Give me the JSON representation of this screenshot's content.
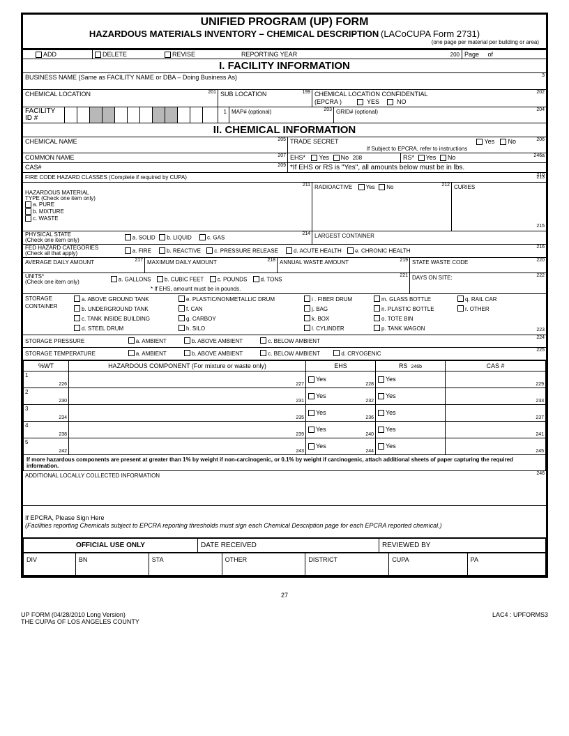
{
  "header": {
    "title": "UNIFIED PROGRAM (UP) FORM",
    "subtitle": "HAZARDOUS MATERIALS INVENTORY – CHEMICAL DESCRIPTION",
    "formref": "(LACoCUPA Form 2731)",
    "note": "(one page per material per building or area)"
  },
  "topbar": {
    "add": "ADD",
    "delete": "DELETE",
    "revise": "REVISE",
    "reporting_year": "REPORTING YEAR",
    "page": "Page",
    "of": "of",
    "n200": "200"
  },
  "sec1": {
    "title": "I.       FACILITY INFORMATION",
    "business": "BUSINESS NAME (Same as FACILITY NAME or DBA – Doing Business As)",
    "n3": "3",
    "chem_loc": "CHEMICAL LOCATION",
    "n201": "201",
    "sub_loc": "SUB LOCATION",
    "n199": "199",
    "conf": "CHEMICAL LOCATION CONFIDENTIAL",
    "epcra": "(EPCRA )",
    "yes": "YES",
    "no": "NO",
    "n202": "202",
    "facility_id": "FACILITY\nID #",
    "n1": "1",
    "map": "MAP# (optional)",
    "n203": "203",
    "grid": "GRID# (optional)",
    "n204": "204"
  },
  "sec2": {
    "title": "II.  CHEMICAL INFORMATION",
    "chem_name": "CHEMICAL NAME",
    "n205": "205",
    "trade_secret": "TRADE SECRET",
    "yes": "Yes",
    "no": "No",
    "n206": "206",
    "epcra_note": "If Subject to EPCRA, refer to instructions",
    "common": "COMMON NAME",
    "n207": "207",
    "ehs": "EHS*",
    "n208": "208",
    "rs": "RS*",
    "n246a": "246a",
    "cas": "CAS#",
    "n209": "209",
    "ehs_note": "*If EHS or RS is \"Yes\", all amounts below must be in lbs.",
    "fire_code": "FIRE CODE HAZARD CLASSES (Complete if required by CUPA)",
    "n210": "210",
    "haz_type": "HAZARDOUS MATERIAL\nTYPE (Check one item only)",
    "pure": "a. PURE",
    "mixture": "b. MIXTURE",
    "waste": "c. WASTE",
    "n211": "211",
    "radio": "RADIOACTIVE",
    "n212": "212",
    "curies": "CURIES",
    "n213": "213",
    "phys": "PHYSICAL STATE\n(Check one item only)",
    "solid": "a. SOLID",
    "liquid": "b. LIQUID",
    "gas": "c. GAS",
    "n214": "214",
    "largest": "LARGEST CONTAINER",
    "n215": "215",
    "fed": "FED HAZARD CATEGORIES\n(Check all that apply)",
    "fire": "a.  FIRE",
    "reactive": "b.  REACTIVE",
    "pressure": "c. PRESSURE RELEASE",
    "acute": "d.  ACUTE HEALTH",
    "chronic": "e.  CHRONIC HEALTH",
    "n216": "216",
    "avg": "AVERAGE DAILY AMOUNT",
    "n217": "217",
    "max": "MAXIMUM DAILY AMOUNT",
    "n218": "218",
    "annual": "ANNUAL WASTE AMOUNT",
    "n219": "219",
    "state_code": "STATE WASTE CODE",
    "n220": "220",
    "units": "UNITS*\n(Check one item only)",
    "gallons": "a. GALLONS",
    "cubic": "b.  CUBIC FEET",
    "pounds": "c. POUNDS",
    "tons": "d. TONS",
    "units_note": "* If EHS, amount must be in pounds.",
    "n221": "221",
    "days": "DAYS ON SITE:",
    "n222": "222",
    "storage": "STORAGE\nCONTAINER",
    "sc_a": "a. ABOVE  GROUND TANK",
    "sc_b": "b. UNDERGROUND TANK",
    "sc_c": "c. TANK INSIDE BUILDING",
    "sc_d": "d.  STEEL DRUM",
    "sc_e": "e. PLASTIC/NONMETALLIC DRUM",
    "sc_f": "f.  CAN",
    "sc_g": "g. CARBOY",
    "sc_h": "h. SILO",
    "sc_i": "i .  FIBER DRUM",
    "sc_j": "j.  BAG",
    "sc_k": "k.  BOX",
    "sc_l": "l.  CYLINDER",
    "sc_m": "m.  GLASS BOTTLE",
    "sc_n": "n.   PLASTIC BOTTLE",
    "sc_o": "o.  TOTE BIN",
    "sc_p": "p.  TANK WAGON",
    "sc_q": "q.  RAIL CAR",
    "sc_r": "r.   OTHER",
    "n223": "223",
    "press": "STORAGE  PRESSURE",
    "ambient": "a.  AMBIENT",
    "above_amb": "b.  ABOVE AMBIENT",
    "below_amb": "c.  BELOW AMBIENT",
    "n224": "224",
    "temp": "STORAGE TEMPERATURE",
    "cryo": "d.  CRYOGENIC",
    "n225": "225"
  },
  "comp": {
    "wt": "%WT",
    "component": "HAZARDOUS COMPONENT (For mixture or waste only)",
    "ehs": "EHS",
    "rs": "RS",
    "rs_n": "246b",
    "cas": "CAS #",
    "rows": [
      {
        "i": "1",
        "a": "226",
        "b": "227",
        "c": "228",
        "d": "229"
      },
      {
        "i": "2",
        "a": "230",
        "b": "231",
        "c": "232",
        "d": "233"
      },
      {
        "i": "3",
        "a": "234",
        "b": "235",
        "c": "236",
        "d": "237"
      },
      {
        "i": "4",
        "a": "238",
        "b": "239",
        "c": "240",
        "d": "241"
      },
      {
        "i": "5",
        "a": "242",
        "b": "243",
        "c": "244",
        "d": "245"
      }
    ],
    "yes": "Yes"
  },
  "notes": {
    "more": "If more hazardous components are present at greater than 1% by weight if non-carcinogenic, or 0.1% by weight if carcinogenic, attach additional sheets of paper capturing the required information.",
    "addl": "ADDITIONAL LOCALLY COLLECTED INFORMATION",
    "n246": "246",
    "sign": "If EPCRA, Please Sign Here",
    "sign_note": "(Facilities reporting Chemicals subject to EPCRA  reporting thresholds must sign each Chemical Description page for each  EPCRA reported chemical.)"
  },
  "official": {
    "title": "OFFICIAL USE ONLY",
    "date": "DATE RECEIVED",
    "reviewed": "REVIEWED BY",
    "div": "DIV",
    "bn": "BN",
    "sta": "STA",
    "other": "OTHER",
    "district": "DISTRICT",
    "cupa": "CUPA",
    "pa": "PA"
  },
  "footer": {
    "page_num": "27",
    "left1": "UP FORM (04/28/2010 Long Version)",
    "left2": "THE CUPAs OF LOS ANGELES COUNTY",
    "right": "LAC4 : UPFORMS3"
  }
}
